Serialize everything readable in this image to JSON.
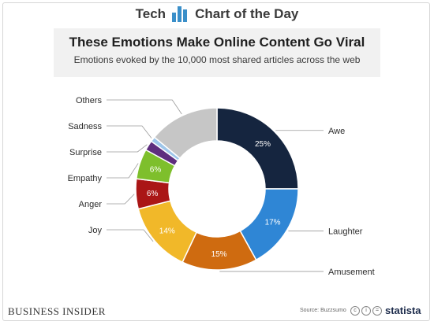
{
  "header": {
    "brand_tech": "Tech",
    "brand_chart_of_day": "Chart of the Day"
  },
  "footer": {
    "publisher": "BUSINESS INSIDER",
    "source": "Source: Buzzsumo",
    "brand": "statista"
  },
  "chart_data": {
    "type": "pie",
    "title": "These Emotions Make Online Content Go Viral",
    "subtitle": "Emotions evoked by the 10,000 most shared articles across the web",
    "categories": [
      "Awe",
      "Laughter",
      "Amusement",
      "Joy",
      "Anger",
      "Empathy",
      "Surprise",
      "Sadness",
      "Others"
    ],
    "values": [
      25,
      17,
      15,
      14,
      6,
      6,
      2,
      1,
      14
    ],
    "labels": [
      "25%",
      "17%",
      "15%",
      "14%",
      "6%",
      "6%",
      "",
      "",
      ""
    ],
    "colors": [
      "#15253f",
      "#2f86d5",
      "#cf6b10",
      "#f1b829",
      "#aa1616",
      "#7ebf2c",
      "#5e2e7e",
      "#9ec6ea",
      "#c6c6c6"
    ],
    "legend": "callout-labels",
    "donut": true
  }
}
